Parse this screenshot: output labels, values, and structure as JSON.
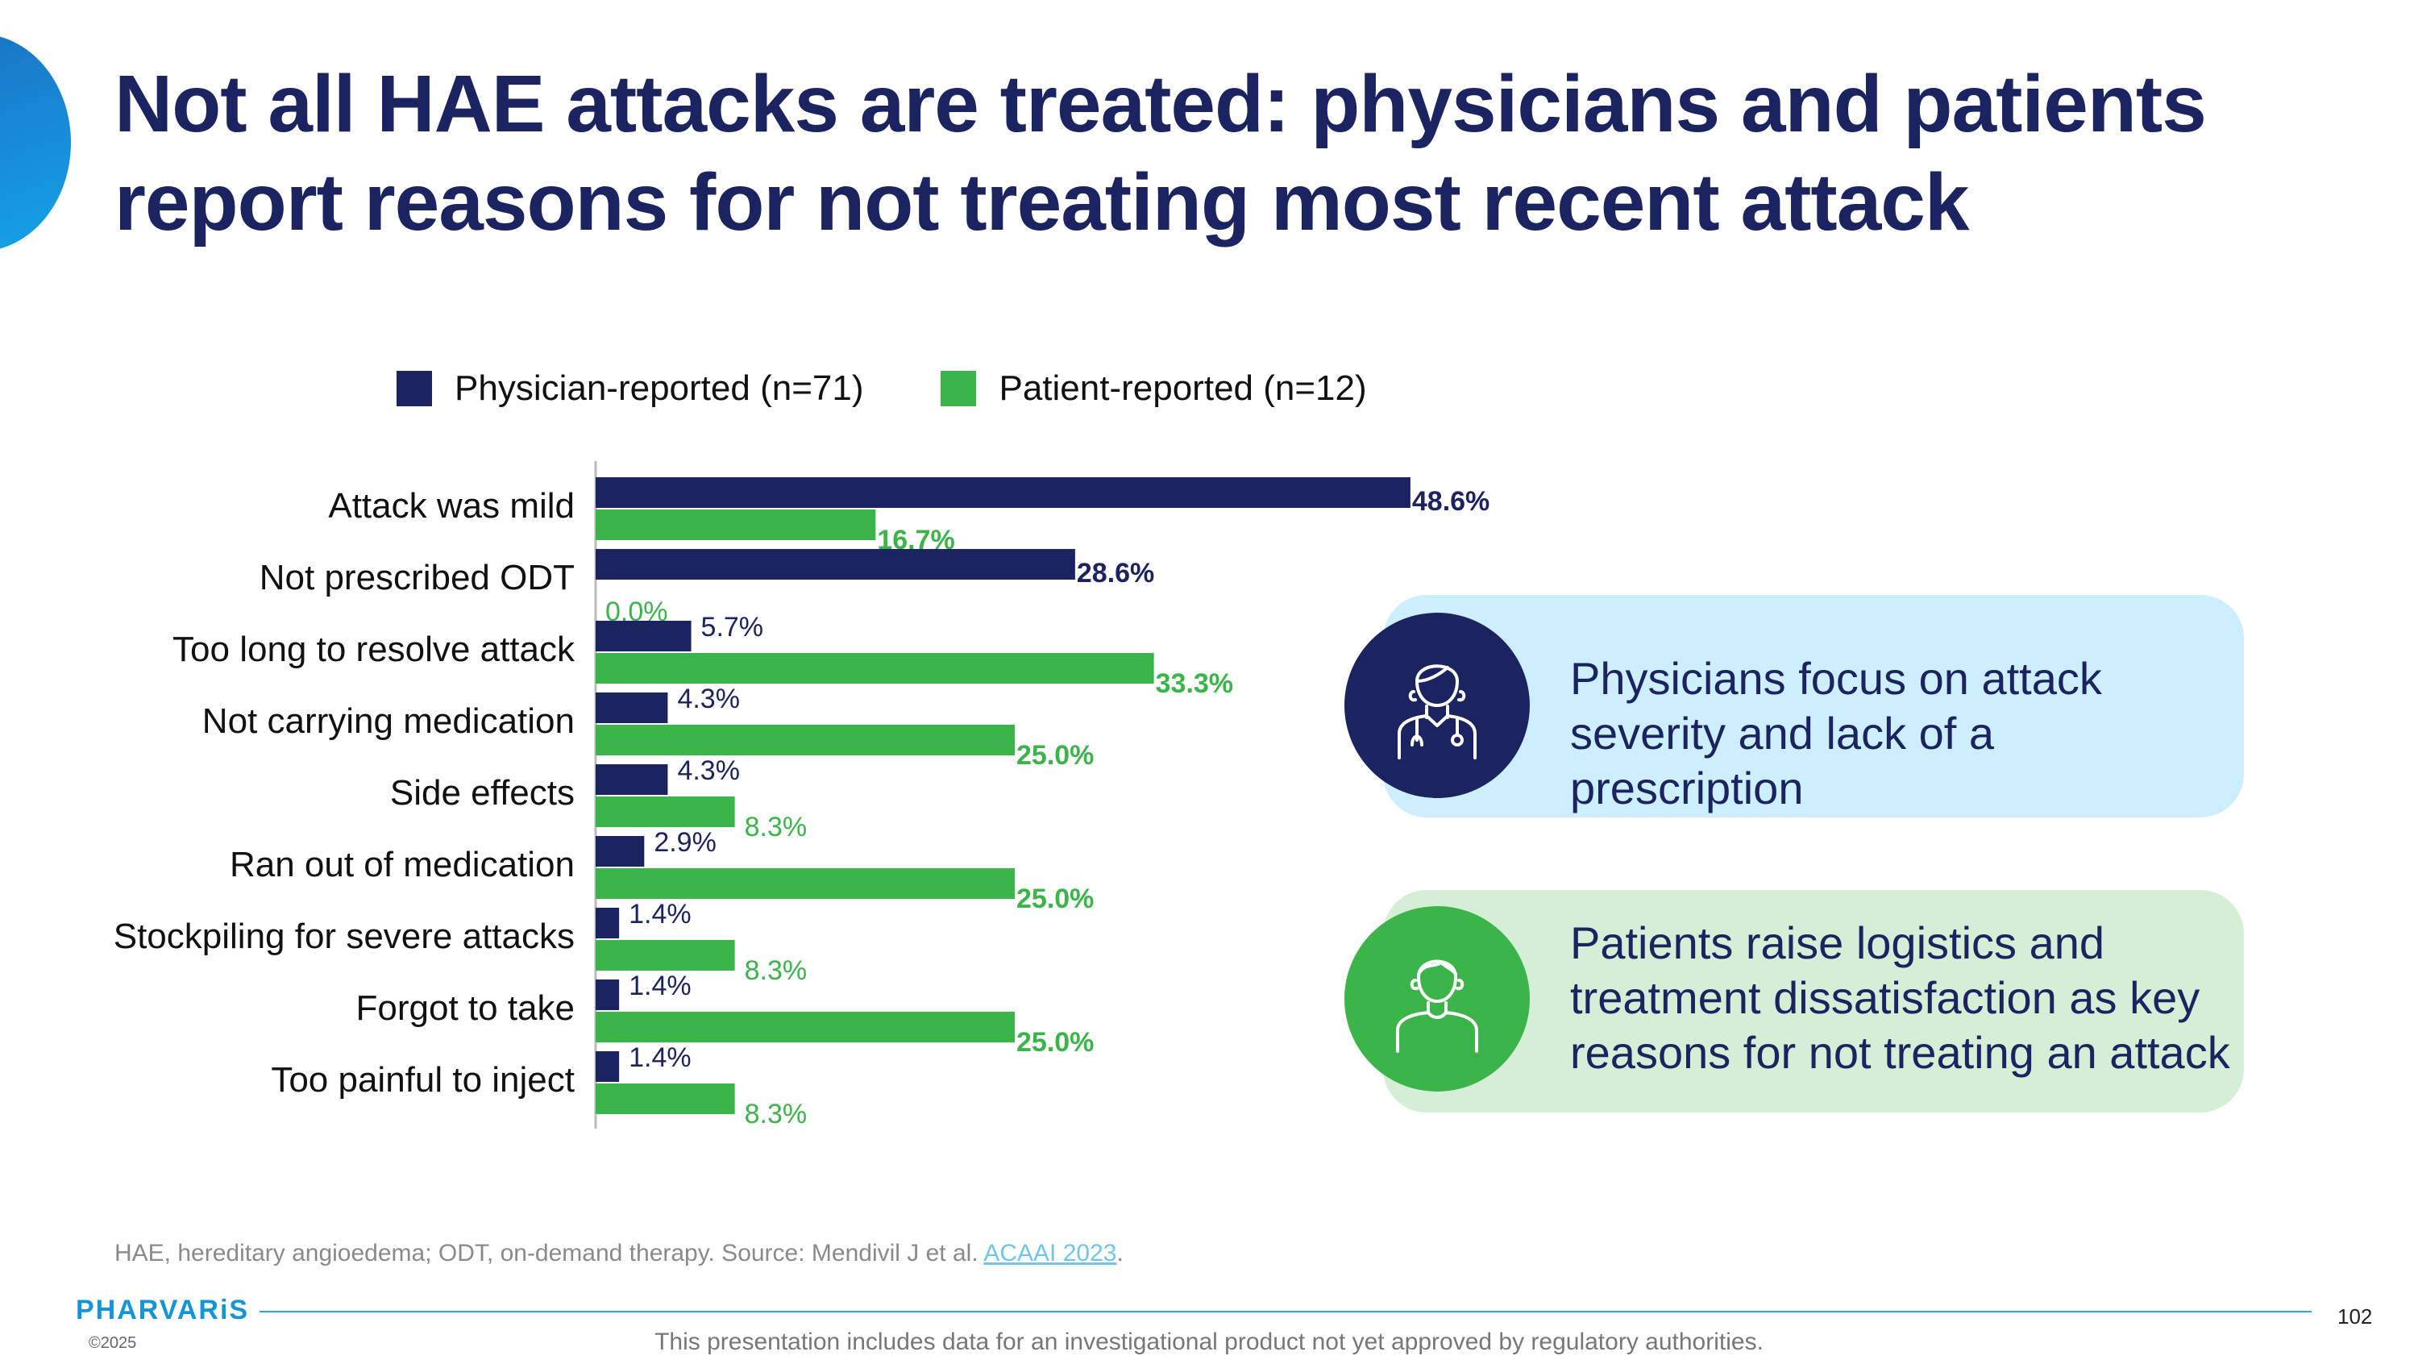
{
  "slide": {
    "title": "Not all HAE attacks are treated: physicians and patients report reasons for not treating most recent attack",
    "page_number": "102"
  },
  "colors": {
    "navy": "#1c2361",
    "green": "#3bb44a",
    "light_blue_panel": "#cdeffd",
    "light_green_panel": "#d4efd6",
    "accent_blue": "#1594d6"
  },
  "chart_data": {
    "type": "bar",
    "orientation": "horizontal",
    "categories": [
      "Attack was mild",
      "Not prescribed ODT",
      "Too long to resolve attack",
      "Not carrying medication",
      "Side effects",
      "Ran out of medication",
      "Stockpiling for severe attacks",
      "Forgot to take",
      "Too painful to inject"
    ],
    "series": [
      {
        "name": "Physician-reported (n=71)",
        "color": "#1c2361",
        "values": [
          48.6,
          28.6,
          5.7,
          4.3,
          4.3,
          2.9,
          1.4,
          1.4,
          1.4
        ],
        "labels": [
          "48.6%",
          "28.6%",
          "5.7%",
          "4.3%",
          "4.3%",
          "2.9%",
          "1.4%",
          "1.4%",
          "1.4%"
        ]
      },
      {
        "name": "Patient-reported (n=12)",
        "color": "#3bb44a",
        "values": [
          16.7,
          0.0,
          33.3,
          25.0,
          8.3,
          25.0,
          8.3,
          25.0,
          8.3
        ],
        "labels": [
          "16.7%",
          "0.0%",
          "33.3%",
          "25.0%",
          "8.3%",
          "25.0%",
          "8.3%",
          "25.0%",
          "8.3%"
        ]
      }
    ],
    "legend_position": "top",
    "grid": false,
    "xlim": [
      0,
      48.6
    ]
  },
  "callouts": {
    "physicians": {
      "text": "Physicians focus on attack severity and lack of a prescription",
      "icon": "physician-icon"
    },
    "patients": {
      "text": "Patients raise logistics and treatment dissatisfaction as key reasons for not treating an attack",
      "icon": "patient-icon"
    }
  },
  "footer": {
    "footnote": "HAE, hereditary angioedema; ODT, on-demand therapy. Source: Mendivil J et al. ",
    "footnote_link": "ACAAI 2023",
    "footnote_end": ".",
    "logo": "PHARVARiS",
    "copyright": "©2025",
    "disclaimer": "This presentation includes data for an investigational product not yet approved by regulatory authorities."
  }
}
